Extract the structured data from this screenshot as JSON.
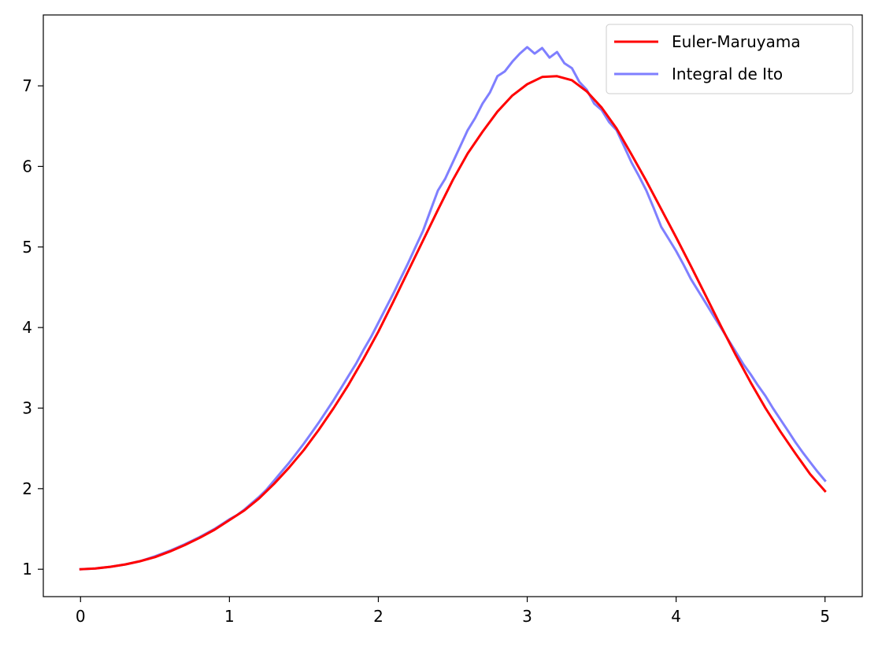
{
  "chart_data": {
    "type": "line",
    "title": "",
    "xlabel": "",
    "ylabel": "",
    "xlim": [
      -0.25,
      5.25
    ],
    "ylim": [
      0.66,
      7.88
    ],
    "xticks": [
      0,
      1,
      2,
      3,
      4,
      5
    ],
    "xtick_labels": [
      "0",
      "1",
      "2",
      "3",
      "4",
      "5"
    ],
    "yticks": [
      1,
      2,
      3,
      4,
      5,
      6,
      7
    ],
    "ytick_labels": [
      "1",
      "2",
      "3",
      "4",
      "5",
      "6",
      "7"
    ],
    "grid": false,
    "legend": {
      "placement": "top-right",
      "entries": [
        "Euler-Maruyama",
        "Integral de Ito"
      ]
    },
    "series": [
      {
        "name": "Euler-Maruyama",
        "color": "#ff0000",
        "opacity": 1.0,
        "x": [
          0,
          0.1,
          0.2,
          0.3,
          0.4,
          0.5,
          0.6,
          0.7,
          0.8,
          0.9,
          1.0,
          1.1,
          1.2,
          1.3,
          1.4,
          1.5,
          1.6,
          1.7,
          1.8,
          1.9,
          2.0,
          2.1,
          2.2,
          2.3,
          2.4,
          2.5,
          2.6,
          2.7,
          2.8,
          2.9,
          3.0,
          3.1,
          3.2,
          3.3,
          3.4,
          3.5,
          3.6,
          3.7,
          3.8,
          3.9,
          4.0,
          4.1,
          4.2,
          4.3,
          4.4,
          4.5,
          4.6,
          4.7,
          4.8,
          4.9,
          5.0
        ],
        "y": [
          1.0,
          1.01,
          1.03,
          1.06,
          1.1,
          1.15,
          1.22,
          1.3,
          1.39,
          1.49,
          1.61,
          1.73,
          1.88,
          2.06,
          2.26,
          2.48,
          2.73,
          3.0,
          3.29,
          3.61,
          3.95,
          4.32,
          4.7,
          5.08,
          5.46,
          5.83,
          6.16,
          6.43,
          6.68,
          6.88,
          7.02,
          7.11,
          7.12,
          7.07,
          6.93,
          6.73,
          6.47,
          6.15,
          5.82,
          5.47,
          5.12,
          4.76,
          4.39,
          4.02,
          3.66,
          3.32,
          3.0,
          2.71,
          2.44,
          2.18,
          1.97
        ]
      },
      {
        "name": "Integral de Ito",
        "color": "#0000ff",
        "opacity": 0.5,
        "x": [
          0,
          0.1,
          0.2,
          0.3,
          0.4,
          0.5,
          0.6,
          0.7,
          0.8,
          0.9,
          1.0,
          1.05,
          1.1,
          1.15,
          1.2,
          1.25,
          1.3,
          1.35,
          1.4,
          1.45,
          1.5,
          1.55,
          1.6,
          1.65,
          1.7,
          1.75,
          1.8,
          1.85,
          1.9,
          1.95,
          2.0,
          2.05,
          2.1,
          2.15,
          2.2,
          2.25,
          2.3,
          2.35,
          2.4,
          2.45,
          2.5,
          2.55,
          2.6,
          2.65,
          2.7,
          2.75,
          2.8,
          2.85,
          2.9,
          2.95,
          3.0,
          3.05,
          3.1,
          3.15,
          3.2,
          3.25,
          3.3,
          3.35,
          3.4,
          3.45,
          3.5,
          3.55,
          3.6,
          3.65,
          3.7,
          3.75,
          3.8,
          3.85,
          3.9,
          3.95,
          4.0,
          4.05,
          4.1,
          4.15,
          4.2,
          4.25,
          4.3,
          4.35,
          4.4,
          4.45,
          4.5,
          4.55,
          4.6,
          4.65,
          4.7,
          4.75,
          4.8,
          4.85,
          4.9,
          4.95,
          5.0
        ],
        "y": [
          1.0,
          1.01,
          1.03,
          1.06,
          1.1,
          1.16,
          1.23,
          1.31,
          1.4,
          1.5,
          1.62,
          1.67,
          1.74,
          1.82,
          1.9,
          1.99,
          2.1,
          2.21,
          2.32,
          2.44,
          2.56,
          2.69,
          2.82,
          2.96,
          3.1,
          3.25,
          3.4,
          3.55,
          3.72,
          3.88,
          4.06,
          4.24,
          4.42,
          4.61,
          4.8,
          5.0,
          5.2,
          5.45,
          5.7,
          5.85,
          6.05,
          6.25,
          6.45,
          6.6,
          6.78,
          6.92,
          7.12,
          7.18,
          7.3,
          7.4,
          7.48,
          7.4,
          7.47,
          7.35,
          7.42,
          7.28,
          7.22,
          7.05,
          6.95,
          6.78,
          6.7,
          6.55,
          6.45,
          6.25,
          6.05,
          5.88,
          5.7,
          5.48,
          5.25,
          5.1,
          4.95,
          4.78,
          4.6,
          4.45,
          4.3,
          4.15,
          4.0,
          3.85,
          3.7,
          3.55,
          3.42,
          3.28,
          3.15,
          3.0,
          2.86,
          2.72,
          2.58,
          2.45,
          2.33,
          2.21,
          2.1
        ]
      }
    ]
  }
}
